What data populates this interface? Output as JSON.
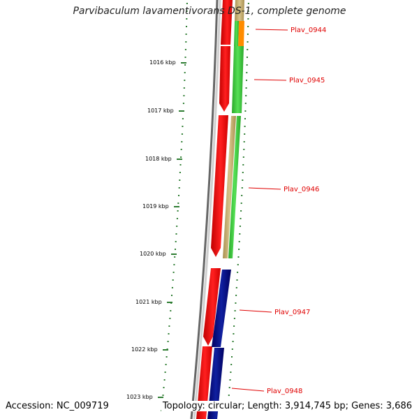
{
  "title": "Parvibaculum lavamentivorans DS-1, complete genome",
  "footer": {
    "accession": "Accession: NC_009719",
    "summary": "Topology: circular; Length: 3,914,745 bp; Genes: 3,686"
  },
  "ruler": [
    {
      "label": "1016 kbp"
    },
    {
      "label": "1017 kbp"
    },
    {
      "label": "1018 kbp"
    },
    {
      "label": "1019 kbp"
    },
    {
      "label": "1020 kbp"
    },
    {
      "label": "1021 kbp"
    },
    {
      "label": "1022 kbp"
    },
    {
      "label": "1023 kbp"
    }
  ],
  "genes": [
    {
      "label": "Plav_0944"
    },
    {
      "label": "Plav_0945"
    },
    {
      "label": "Plav_0946"
    },
    {
      "label": "Plav_0947"
    },
    {
      "label": "Plav_0948"
    }
  ],
  "colors": {
    "cds": "#ff0000",
    "green_track": "#33cc33",
    "khaki_track": "#c8b070",
    "navy_track": "#000080",
    "orange": "#ff8c00",
    "ruler_tick": "#2e7d32",
    "backbone": "#777777",
    "label": "#e00000"
  }
}
